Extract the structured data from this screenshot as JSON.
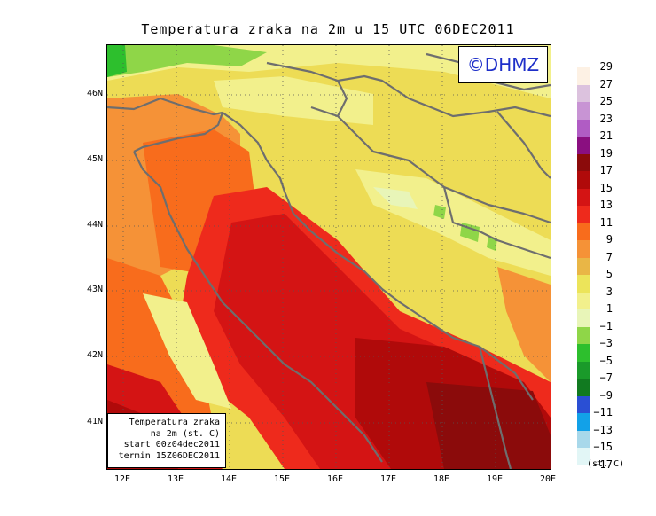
{
  "title": "Temperatura zraka na 2m u 15 UTC 06DEC2011",
  "brand": "©DHMZ",
  "info": {
    "line1": "Temperatura zraka",
    "line2": "na 2m (st. C)",
    "line3": "start 00z04dec2011",
    "line4": "termin 15Z06DEC2011"
  },
  "lat_labels": [
    "46N",
    "45N",
    "44N",
    "43N",
    "42N",
    "41N"
  ],
  "lon_labels": [
    "12E",
    "13E",
    "14E",
    "15E",
    "16E",
    "17E",
    "18E",
    "19E",
    "20E"
  ],
  "legend": {
    "unit": "(st. C)",
    "labels": [
      "29",
      "27",
      "25",
      "23",
      "21",
      "19",
      "17",
      "15",
      "13",
      "11",
      "9",
      "7",
      "5",
      "3",
      "1",
      "−1",
      "−3",
      "−5",
      "−7",
      "−9",
      "−11",
      "−13",
      "−15",
      "−17"
    ],
    "colors": [
      "#fdf1e4",
      "#dcc2de",
      "#c894d4",
      "#b05cc4",
      "#8a0f80",
      "#8b0b0b",
      "#b00a0a",
      "#d41414",
      "#ee2a1c",
      "#f86c1c",
      "#f59237",
      "#e9b646",
      "#ece45a",
      "#f2f08c",
      "#e8f5b8",
      "#8fd648",
      "#2dbf2d",
      "#1a9a2a",
      "#117a20",
      "#2a4fd4",
      "#12a1e8",
      "#a8d8ea",
      "#e2f6f6"
    ]
  }
}
